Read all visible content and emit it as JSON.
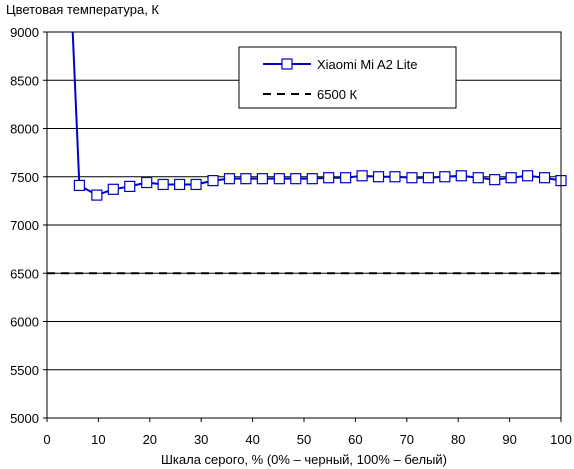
{
  "chart_data": {
    "type": "line",
    "title": "",
    "xlabel": "Шкала серого, % (0% – черный, 100% – белый)",
    "ylabel": "Цветовая температура, К",
    "xlim": [
      0,
      100
    ],
    "ylim": [
      5000,
      9000
    ],
    "x_ticks": [
      0,
      10,
      20,
      30,
      40,
      50,
      60,
      70,
      80,
      90,
      100
    ],
    "y_ticks": [
      5000,
      5500,
      6000,
      6500,
      7000,
      7500,
      8000,
      8500,
      9000
    ],
    "grid": "horizontal",
    "legend_position": "top-right",
    "series": [
      {
        "name": "Xiaomi Mi A2 Lite",
        "color": "#0000cc",
        "marker": "square",
        "x": [
          5,
          6.3,
          9.7,
          12.9,
          16.1,
          19.4,
          22.6,
          25.8,
          29,
          32.3,
          35.5,
          38.7,
          41.9,
          45.2,
          48.4,
          51.6,
          54.8,
          58.1,
          61.3,
          64.5,
          67.7,
          71,
          74.2,
          77.4,
          80.6,
          83.9,
          87.1,
          90.3,
          93.5,
          96.8,
          100
        ],
        "y": [
          9000,
          7410,
          7310,
          7370,
          7400,
          7440,
          7420,
          7420,
          7420,
          7460,
          7480,
          7480,
          7480,
          7480,
          7480,
          7480,
          7490,
          7490,
          7510,
          7500,
          7500,
          7490,
          7490,
          7500,
          7510,
          7490,
          7470,
          7490,
          7510,
          7490,
          7460
        ],
        "markers_from_index": 1
      },
      {
        "name": "6500 К",
        "color": "#000000",
        "style": "dashed",
        "x": [
          0,
          100
        ],
        "y": [
          6500,
          6500
        ]
      }
    ]
  }
}
